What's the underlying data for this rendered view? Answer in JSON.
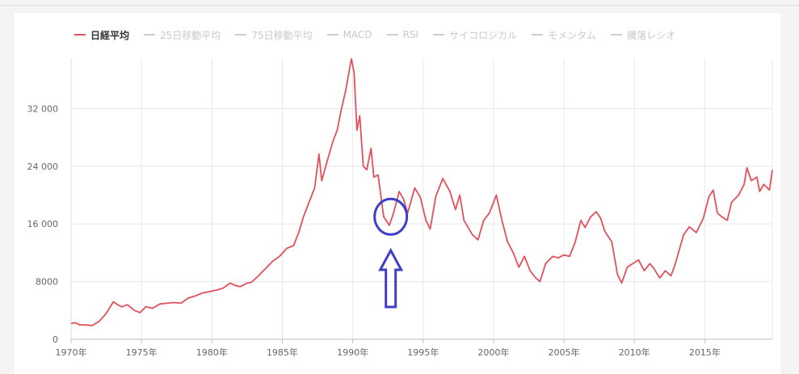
{
  "colors": {
    "line": "#e2505c",
    "annotation": "#3d3fc7",
    "grid": "#e8e8e8",
    "inactive_legend": "#c9c9c9"
  },
  "legend": [
    {
      "label": "日経平均",
      "active": true
    },
    {
      "label": "25日移動平均",
      "active": false
    },
    {
      "label": "75日移動平均",
      "active": false
    },
    {
      "label": "MACD",
      "active": false
    },
    {
      "label": "RSI",
      "active": false
    },
    {
      "label": "サイコロジカル",
      "active": false
    },
    {
      "label": "モメンタム",
      "active": false
    },
    {
      "label": "騰落レシオ",
      "active": false
    }
  ],
  "chart_data": {
    "type": "line",
    "title": "",
    "xlabel": "",
    "ylabel": "",
    "xlim": [
      1970,
      2019.8
    ],
    "ylim": [
      0,
      39000
    ],
    "x_ticks": [
      1970,
      1975,
      1980,
      1985,
      1990,
      1995,
      2000,
      2005,
      2010,
      2015
    ],
    "x_tick_labels": [
      "1970年",
      "1975年",
      "1980年",
      "1985年",
      "1990年",
      "1995年",
      "2000年",
      "2005年",
      "2010年",
      "2015年"
    ],
    "y_ticks": [
      0,
      8000,
      16000,
      24000,
      32000
    ],
    "y_tick_labels": [
      "0",
      "8000",
      "16 000",
      "24 000",
      "32 000"
    ],
    "grid": true,
    "legend_position": "top-left",
    "series": [
      {
        "name": "日経平均",
        "x": [
          1970,
          1970.3,
          1970.6,
          1971,
          1971.5,
          1972,
          1972.5,
          1973,
          1973.3,
          1973.6,
          1974,
          1974.5,
          1974.9,
          1975.3,
          1975.8,
          1976.3,
          1976.8,
          1977.3,
          1977.8,
          1978.3,
          1978.8,
          1979.3,
          1979.8,
          1980.3,
          1980.8,
          1981.3,
          1981.6,
          1982,
          1982.5,
          1982.8,
          1983.3,
          1983.8,
          1984.3,
          1984.8,
          1985.3,
          1985.8,
          1986.2,
          1986.5,
          1986.8,
          1987.3,
          1987.6,
          1987.8,
          1988.2,
          1988.6,
          1988.9,
          1989.2,
          1989.5,
          1989.9,
          1990.1,
          1990.3,
          1990.5,
          1990.75,
          1991,
          1991.3,
          1991.5,
          1991.8,
          1992.2,
          1992.6,
          1992.9,
          1993.3,
          1993.6,
          1993.9,
          1994.4,
          1994.8,
          1995.2,
          1995.5,
          1995.9,
          1996.4,
          1996.9,
          1997.3,
          1997.6,
          1997.9,
          1998.5,
          1998.9,
          1999.3,
          1999.7,
          2000.2,
          2000.6,
          2001,
          2001.4,
          2001.8,
          2002.2,
          2002.6,
          2003,
          2003.3,
          2003.7,
          2004.2,
          2004.6,
          2005,
          2005.4,
          2005.8,
          2006.2,
          2006.5,
          2006.9,
          2007.3,
          2007.6,
          2007.9,
          2008.4,
          2008.8,
          2009.1,
          2009.5,
          2009.9,
          2010.3,
          2010.7,
          2011.1,
          2011.4,
          2011.8,
          2012.2,
          2012.6,
          2012.9,
          2013.2,
          2013.5,
          2013.9,
          2014.4,
          2014.9,
          2015.3,
          2015.6,
          2015.9,
          2016.2,
          2016.6,
          2016.9,
          2017.4,
          2017.8,
          2018,
          2018.3,
          2018.7,
          2018.9,
          2019.2,
          2019.6,
          2019.8
        ],
        "values": [
          2200,
          2300,
          2000,
          2000,
          1900,
          2500,
          3600,
          5200,
          4800,
          4500,
          4800,
          4000,
          3700,
          4500,
          4300,
          4900,
          5000,
          5100,
          5000,
          5700,
          6000,
          6400,
          6600,
          6800,
          7100,
          7800,
          7500,
          7300,
          7800,
          7900,
          8800,
          9800,
          10800,
          11500,
          12600,
          13000,
          15000,
          17000,
          18500,
          21000,
          25700,
          22000,
          24800,
          27500,
          29000,
          32000,
          34500,
          38900,
          37000,
          29000,
          31000,
          24000,
          23500,
          26500,
          22500,
          22800,
          17000,
          15800,
          17500,
          20500,
          19500,
          17500,
          21000,
          19700,
          16500,
          15300,
          19800,
          22300,
          20500,
          18000,
          20000,
          16500,
          14500,
          13800,
          16500,
          17500,
          20000,
          16500,
          13500,
          12000,
          10000,
          11500,
          9500,
          8500,
          8000,
          10500,
          11500,
          11300,
          11700,
          11500,
          13500,
          16500,
          15500,
          17000,
          17700,
          16800,
          15000,
          13500,
          9000,
          7800,
          10000,
          10500,
          11000,
          9500,
          10500,
          9800,
          8500,
          9500,
          8800,
          10400,
          12500,
          14500,
          15600,
          14800,
          16800,
          19800,
          20700,
          17500,
          17000,
          16500,
          19000,
          20000,
          21500,
          23800,
          22000,
          22500,
          20500,
          21500,
          20700,
          23500
        ]
      }
    ],
    "annotations": [
      {
        "type": "circle",
        "x": 1992.7,
        "y": 17000
      },
      {
        "type": "arrow-up",
        "x": 1992.7,
        "y": 16400
      }
    ]
  }
}
